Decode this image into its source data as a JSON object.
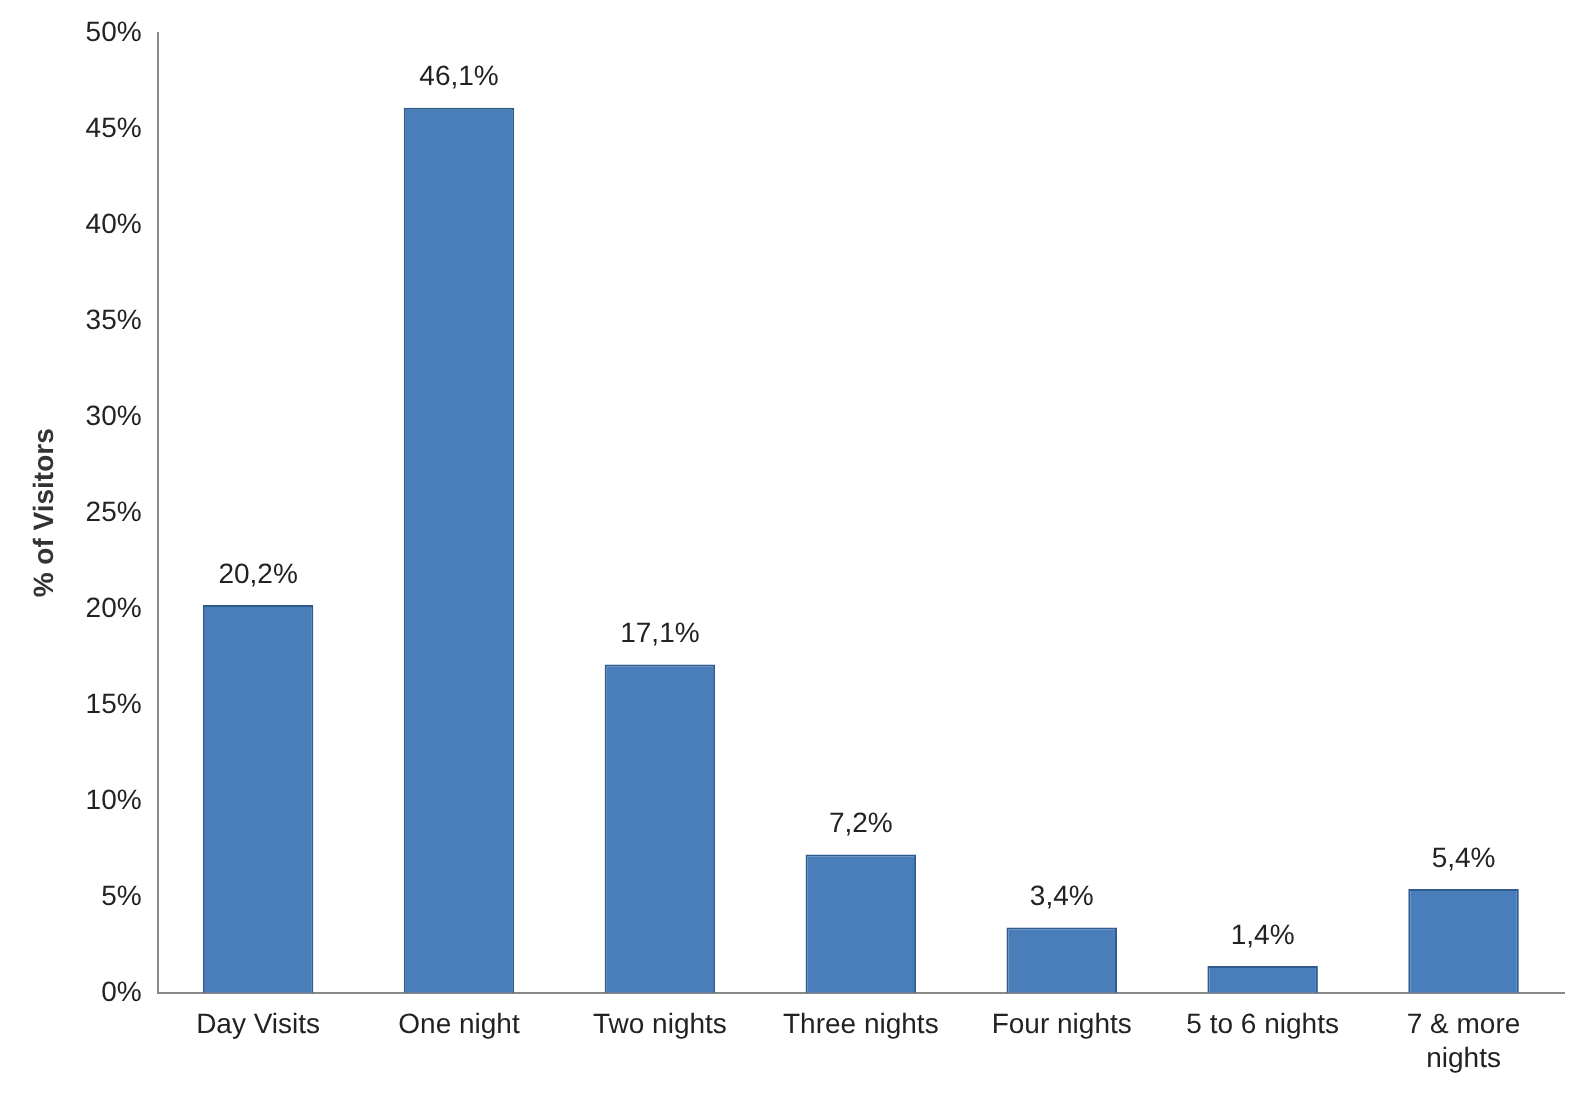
{
  "chart_data": {
    "type": "bar",
    "ylabel": "% of Visitors",
    "categories": [
      "Day Visits",
      "One night",
      "Two nights",
      "Three nights",
      "Four nights",
      "5 to 6 nights",
      "7 & more nights"
    ],
    "values": [
      20.2,
      46.1,
      17.1,
      7.2,
      3.4,
      1.4,
      5.4
    ],
    "value_labels": [
      "20,2%",
      "46,1%",
      "17,1%",
      "7,2%",
      "3,4%",
      "1,4%",
      "5,4%"
    ],
    "color": "#4a7ebb",
    "ylim": [
      0,
      50
    ],
    "yticks": [
      {
        "value": 0,
        "label": "0%"
      },
      {
        "value": 5,
        "label": "5%"
      },
      {
        "value": 10,
        "label": "10%"
      },
      {
        "value": 15,
        "label": "15%"
      },
      {
        "value": 20,
        "label": "20%"
      },
      {
        "value": 25,
        "label": "25%"
      },
      {
        "value": 30,
        "label": "30%"
      },
      {
        "value": 35,
        "label": "35%"
      },
      {
        "value": 40,
        "label": "40%"
      },
      {
        "value": 45,
        "label": "45%"
      },
      {
        "value": 50,
        "label": "50%"
      }
    ],
    "grid": false,
    "legend": false
  }
}
